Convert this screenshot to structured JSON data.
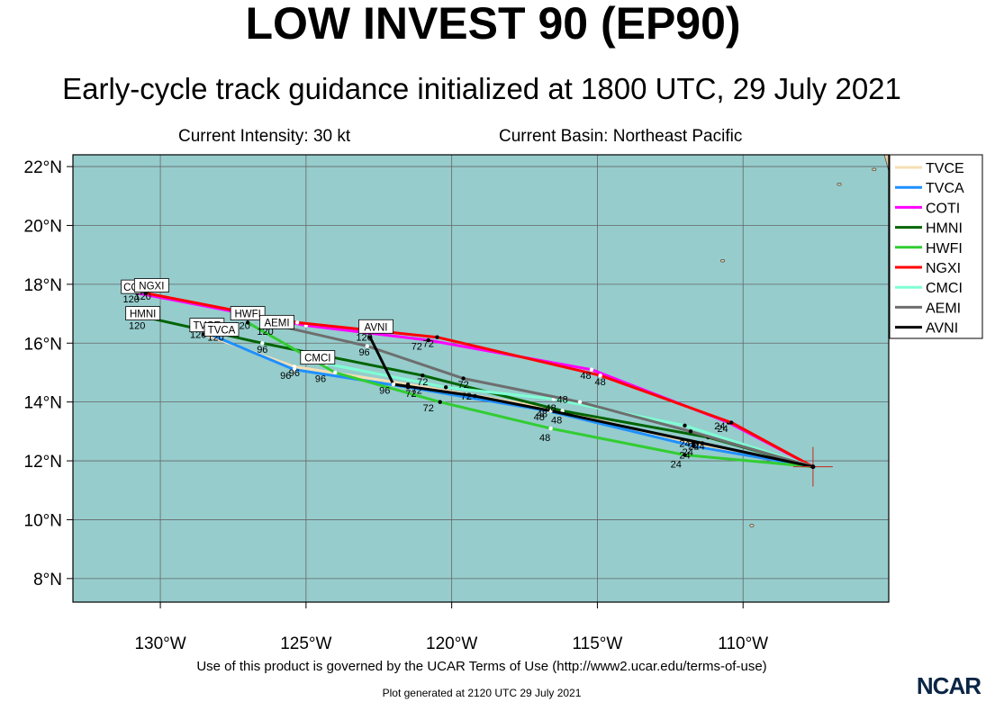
{
  "header": {
    "title": "LOW INVEST 90 (EP90)",
    "subtitle": "Early-cycle track guidance initialized at 1800 UTC, 29 July 2021",
    "intensity": "Current Intensity: 30 kt",
    "basin": "Current Basin: Northeast Pacific"
  },
  "footer": {
    "terms": "Use of this product is governed by the UCAR Terms of Use (http://www2.ucar.edu/terms-of-use)",
    "generated": "Plot generated at 2120 UTC   29 July 2021",
    "logo": "NCAR"
  },
  "colors": {
    "ocean": "#96cccc",
    "land": "#e8c9a0",
    "grid": "#666666"
  },
  "chart_data": {
    "type": "line",
    "map": "track guidance",
    "xlim": [
      -133,
      -105
    ],
    "ylim": [
      7.2,
      22.4
    ],
    "x_ticks": [
      {
        "v": -130,
        "label": "130°W"
      },
      {
        "v": -125,
        "label": "125°W"
      },
      {
        "v": -120,
        "label": "120°W"
      },
      {
        "v": -115,
        "label": "115°W"
      },
      {
        "v": -110,
        "label": "110°W"
      }
    ],
    "y_ticks": [
      {
        "v": 8,
        "label": "8°N"
      },
      {
        "v": 10,
        "label": "10°N"
      },
      {
        "v": 12,
        "label": "12°N"
      },
      {
        "v": 14,
        "label": "14°N"
      },
      {
        "v": 16,
        "label": "16°N"
      },
      {
        "v": 18,
        "label": "18°N"
      },
      {
        "v": 20,
        "label": "20°N"
      },
      {
        "v": 22,
        "label": "22°N"
      }
    ],
    "current_position": {
      "lon": -107.6,
      "lat": 11.8
    },
    "legend_position": "right",
    "series": [
      {
        "name": "TVCE",
        "color": "#f5deb3",
        "track": [
          [
            -107.6,
            11.8
          ],
          [
            -111.7,
            12.6
          ],
          [
            -116.7,
            13.8
          ],
          [
            -121.5,
            14.6
          ],
          [
            -125.4,
            15.2
          ],
          [
            -128.5,
            16.3
          ]
        ],
        "labels": [
          {
            "lon": -111.9,
            "lat": 12.3,
            "text": "24"
          },
          {
            "lon": -116.9,
            "lat": 13.6,
            "text": "48"
          },
          {
            "lon": -121.2,
            "lat": 14.4,
            "text": "72"
          },
          {
            "lon": -125.4,
            "lat": 15.0,
            "text": "96"
          },
          {
            "lon": -128.7,
            "lat": 16.3,
            "text": "120"
          }
        ],
        "box": {
          "lon": -128.4,
          "lat": 16.6,
          "text": "TVCE"
        }
      },
      {
        "name": "TVCA",
        "color": "#1e90ff",
        "track": [
          [
            -107.6,
            11.8
          ],
          [
            -111.7,
            12.5
          ],
          [
            -116.7,
            13.7
          ],
          [
            -121.5,
            14.5
          ],
          [
            -125.4,
            15.1
          ],
          [
            -128.3,
            16.3
          ]
        ],
        "labels": [
          {
            "lon": -112.0,
            "lat": 12.2,
            "text": "24"
          },
          {
            "lon": -117.0,
            "lat": 13.5,
            "text": "48"
          },
          {
            "lon": -121.4,
            "lat": 14.3,
            "text": "72"
          },
          {
            "lon": -125.7,
            "lat": 14.9,
            "text": "96"
          },
          {
            "lon": -128.1,
            "lat": 16.2,
            "text": "120"
          }
        ],
        "box": {
          "lon": -127.9,
          "lat": 16.45,
          "text": "TVCA"
        }
      },
      {
        "name": "COTI",
        "color": "#ff00ff",
        "track": [
          [
            -107.6,
            11.8
          ],
          [
            -110.5,
            13.3
          ],
          [
            -115.2,
            15.1
          ],
          [
            -120.8,
            16.1
          ],
          [
            -125.0,
            16.6
          ],
          [
            -130.8,
            17.7
          ]
        ],
        "labels": [
          {
            "lon": -110.7,
            "lat": 13.1,
            "text": "24"
          },
          {
            "lon": -115.4,
            "lat": 14.9,
            "text": "48"
          },
          {
            "lon": -121.2,
            "lat": 15.9,
            "text": "72"
          },
          {
            "lon": -131.0,
            "lat": 17.5,
            "text": "120"
          }
        ],
        "box": {
          "lon": -131.0,
          "lat": 17.9,
          "text": "CO"
        }
      },
      {
        "name": "HMNI",
        "color": "#006400",
        "track": [
          [
            -107.6,
            11.8
          ],
          [
            -111.2,
            12.8
          ],
          [
            -116.2,
            13.7
          ],
          [
            -121.0,
            14.9
          ],
          [
            -126.5,
            16.0
          ],
          [
            -130.6,
            16.9
          ]
        ],
        "labels": [
          {
            "lon": -111.5,
            "lat": 12.5,
            "text": "24"
          },
          {
            "lon": -116.4,
            "lat": 13.4,
            "text": "48"
          },
          {
            "lon": -121.0,
            "lat": 14.7,
            "text": "72"
          },
          {
            "lon": -126.5,
            "lat": 15.8,
            "text": "96"
          },
          {
            "lon": -130.8,
            "lat": 16.6,
            "text": "120"
          }
        ],
        "box": {
          "lon": -130.6,
          "lat": 17.0,
          "text": "HMNI"
        }
      },
      {
        "name": "HWFI",
        "color": "#32cd32",
        "track": [
          [
            -107.6,
            11.8
          ],
          [
            -112.0,
            12.2
          ],
          [
            -116.6,
            13.1
          ],
          [
            -120.4,
            14.0
          ],
          [
            -124.0,
            15.0
          ],
          [
            -127.0,
            16.7
          ]
        ],
        "labels": [
          {
            "lon": -112.3,
            "lat": 11.9,
            "text": "24"
          },
          {
            "lon": -116.8,
            "lat": 12.8,
            "text": "48"
          },
          {
            "lon": -120.8,
            "lat": 13.8,
            "text": "72"
          },
          {
            "lon": -124.5,
            "lat": 14.8,
            "text": "96"
          },
          {
            "lon": -127.2,
            "lat": 16.6,
            "text": "120"
          }
        ],
        "box": {
          "lon": -127.0,
          "lat": 17.0,
          "text": "HWFI"
        }
      },
      {
        "name": "NGXI",
        "color": "#ff0000",
        "track": [
          [
            -107.6,
            11.8
          ],
          [
            -110.4,
            13.3
          ],
          [
            -114.9,
            14.9
          ],
          [
            -120.5,
            16.2
          ],
          [
            -125.3,
            16.7
          ],
          [
            -130.5,
            17.7
          ]
        ],
        "labels": [
          {
            "lon": -110.8,
            "lat": 13.2,
            "text": "24"
          },
          {
            "lon": -114.9,
            "lat": 14.7,
            "text": "48"
          },
          {
            "lon": -120.8,
            "lat": 16.0,
            "text": "72"
          },
          {
            "lon": -130.6,
            "lat": 17.6,
            "text": "120"
          }
        ],
        "box": {
          "lon": -130.3,
          "lat": 17.95,
          "text": "NGXI"
        }
      },
      {
        "name": "CMCI",
        "color": "#7fffd4",
        "track": [
          [
            -107.6,
            11.8
          ],
          [
            -112.0,
            13.2
          ],
          [
            -116.5,
            14.1
          ],
          [
            -120.2,
            14.5
          ],
          [
            -124.3,
            15.3
          ]
        ],
        "labels": [],
        "box": {
          "lon": -124.6,
          "lat": 15.5,
          "text": "CMCI"
        }
      },
      {
        "name": "AEMI",
        "color": "#6e6e6e",
        "track": [
          [
            -107.6,
            11.8
          ],
          [
            -111.8,
            13.0
          ],
          [
            -115.6,
            14.0
          ],
          [
            -119.6,
            14.8
          ],
          [
            -122.9,
            15.9
          ],
          [
            -126.0,
            16.6
          ]
        ],
        "labels": [
          {
            "lon": -112.0,
            "lat": 12.6,
            "text": "24"
          },
          {
            "lon": -116.2,
            "lat": 14.1,
            "text": "48"
          },
          {
            "lon": -119.6,
            "lat": 14.6,
            "text": "72"
          },
          {
            "lon": -123.0,
            "lat": 15.7,
            "text": "96"
          },
          {
            "lon": -126.4,
            "lat": 16.4,
            "text": "120"
          }
        ],
        "box": {
          "lon": -126.0,
          "lat": 16.7,
          "text": "AEMI"
        }
      },
      {
        "name": "AVNI",
        "color": "#000000",
        "track": [
          [
            -107.6,
            11.8
          ],
          [
            -111.4,
            12.6
          ],
          [
            -116.6,
            13.7
          ],
          [
            -119.2,
            14.2
          ],
          [
            -122.0,
            14.6
          ],
          [
            -122.8,
            16.2
          ]
        ],
        "labels": [
          {
            "lon": -111.7,
            "lat": 12.5,
            "text": "24"
          },
          {
            "lon": -116.6,
            "lat": 13.8,
            "text": "48"
          },
          {
            "lon": -119.5,
            "lat": 14.2,
            "text": "72"
          },
          {
            "lon": -122.3,
            "lat": 14.4,
            "text": "96"
          },
          {
            "lon": -123.0,
            "lat": 16.2,
            "text": "120"
          }
        ],
        "box": {
          "lon": -122.6,
          "lat": 16.55,
          "text": "AVNI"
        }
      }
    ]
  }
}
